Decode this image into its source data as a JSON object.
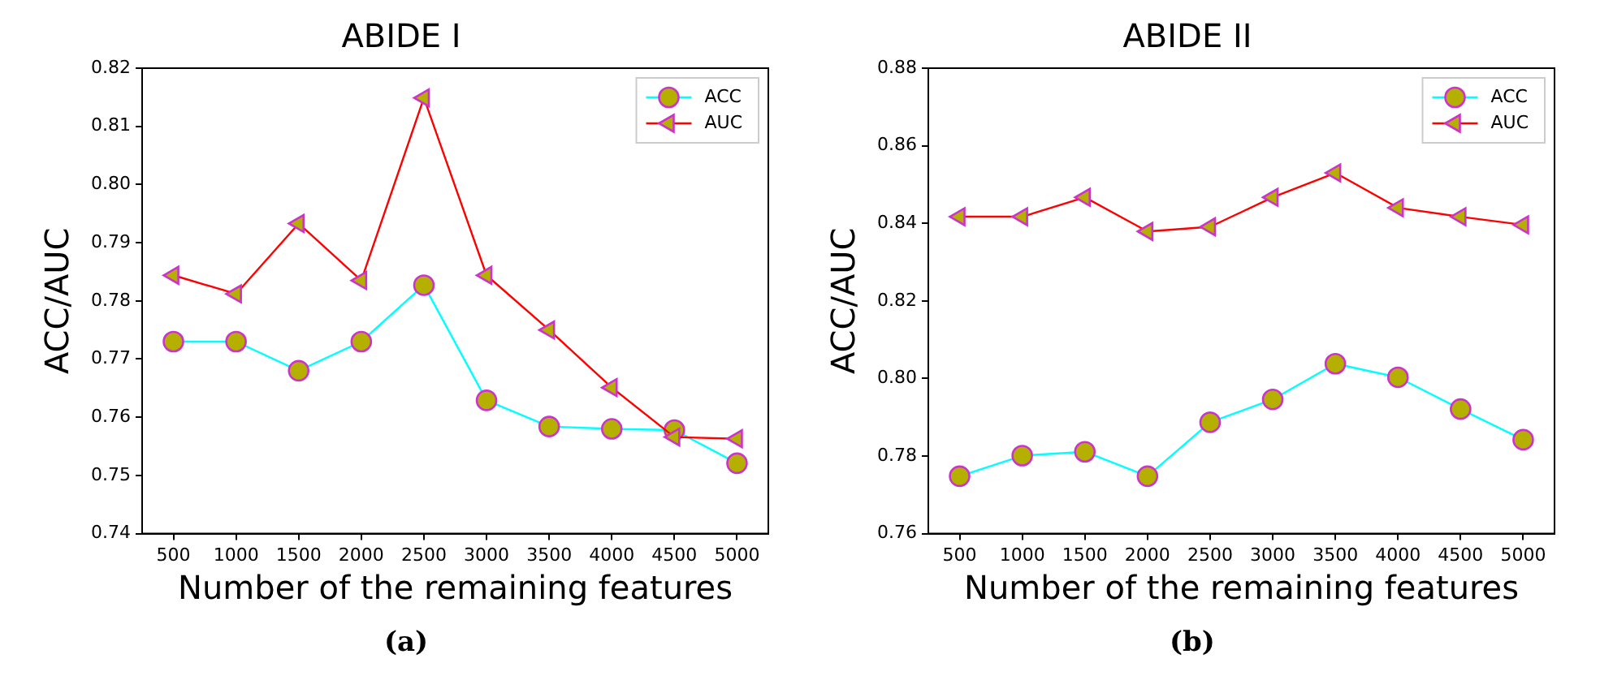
{
  "chart_data": [
    {
      "type": "line",
      "title": "ABIDE I",
      "xlabel": "Number of the remaining features",
      "ylabel": "ACC/AUC",
      "annotations": [
        "(a)"
      ],
      "categories": [
        "500",
        "1000",
        "1500",
        "2000",
        "2500",
        "3000",
        "3500",
        "4000",
        "4500",
        "5000"
      ],
      "series": [
        {
          "name": "ACC",
          "color": "#00ffff",
          "marker": "circle",
          "values": [
            0.773,
            0.773,
            0.768,
            0.773,
            0.7827,
            0.7629,
            0.7584,
            0.758,
            0.7578,
            0.7521
          ]
        },
        {
          "name": "AUC",
          "color": "#ff0000",
          "marker": "triangle",
          "values": [
            0.7844,
            0.7812,
            0.7933,
            0.7835,
            0.8149,
            0.7844,
            0.775,
            0.7651,
            0.7566,
            0.7563
          ]
        }
      ],
      "ylim": [
        0.74,
        0.82
      ],
      "yticks": [
        0.74,
        0.75,
        0.76,
        0.77,
        0.78,
        0.79,
        {
          "value": 0.8,
          "label": "0.80"
        },
        0.81,
        0.82
      ],
      "grid": false,
      "legend": "top right",
      "line_style": "solid"
    },
    {
      "type": "line",
      "title": "ABIDE II",
      "xlabel": "Number of the remaining features",
      "ylabel": "ACC/AUC",
      "annotations": [
        "(b)"
      ],
      "categories": [
        "500",
        "1000",
        "1500",
        "2000",
        "2500",
        "3000",
        "3500",
        "4000",
        "4500",
        "5000"
      ],
      "series": [
        {
          "name": "ACC",
          "color": "#00ffff",
          "marker": "circle",
          "values": [
            0.7748,
            0.7801,
            0.7811,
            0.7748,
            0.7887,
            0.7946,
            0.8038,
            0.8003,
            0.7921,
            0.7842
          ]
        },
        {
          "name": "AUC",
          "color": "#ff0000",
          "marker": "triangle",
          "values": [
            0.8417,
            0.8417,
            0.8467,
            0.8379,
            0.8391,
            0.8467,
            0.853,
            0.844,
            0.8417,
            0.8396
          ]
        }
      ],
      "ylim": [
        0.76,
        0.88
      ],
      "yticks": [
        0.76,
        0.78,
        {
          "value": 0.8,
          "label": "0.80"
        },
        0.82,
        0.84,
        0.86,
        0.88
      ],
      "grid": false,
      "legend": "top right",
      "line_style": "solid"
    }
  ]
}
